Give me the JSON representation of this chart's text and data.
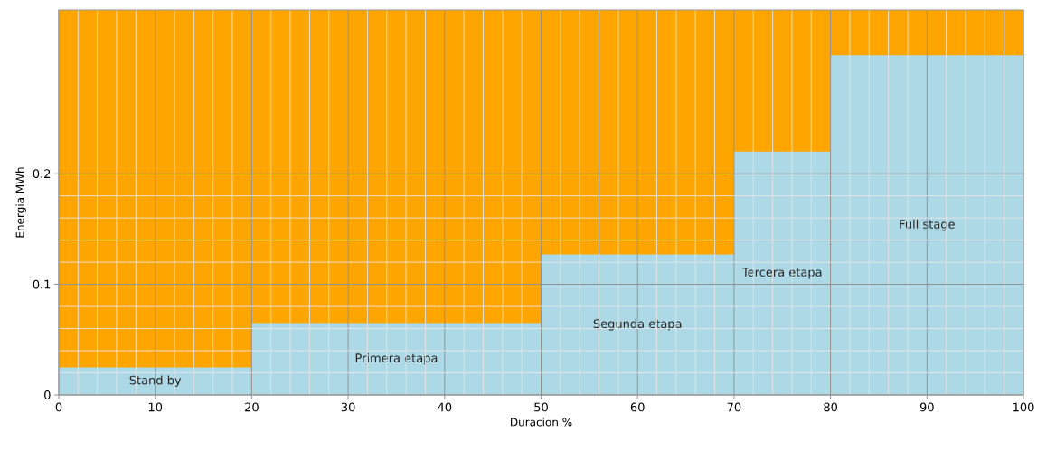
{
  "chart_data": {
    "type": "histogram",
    "xlabel": "Duracion %",
    "ylabel": "Energia MWh",
    "bins": [
      0,
      20,
      50,
      70,
      80,
      100
    ],
    "values": [
      0.025,
      0.065,
      0.127,
      0.22,
      0.307
    ],
    "color": "#add8e6",
    "xlim": [
      0,
      100
    ],
    "ylim": [
      0,
      0.348
    ],
    "xticks": [
      0,
      10,
      20,
      30,
      40,
      50,
      60,
      70,
      80,
      90,
      100
    ],
    "yticks": [
      0,
      0.1,
      0.2
    ],
    "grid": true,
    "bands": [
      {
        "axis": "x",
        "from": 0,
        "to": 100,
        "color": "#ffa500"
      }
    ],
    "annotations": [
      "Stand by",
      "Primera etapa",
      "Segunda etapa",
      "Tercera etapa",
      "Full stage"
    ]
  }
}
